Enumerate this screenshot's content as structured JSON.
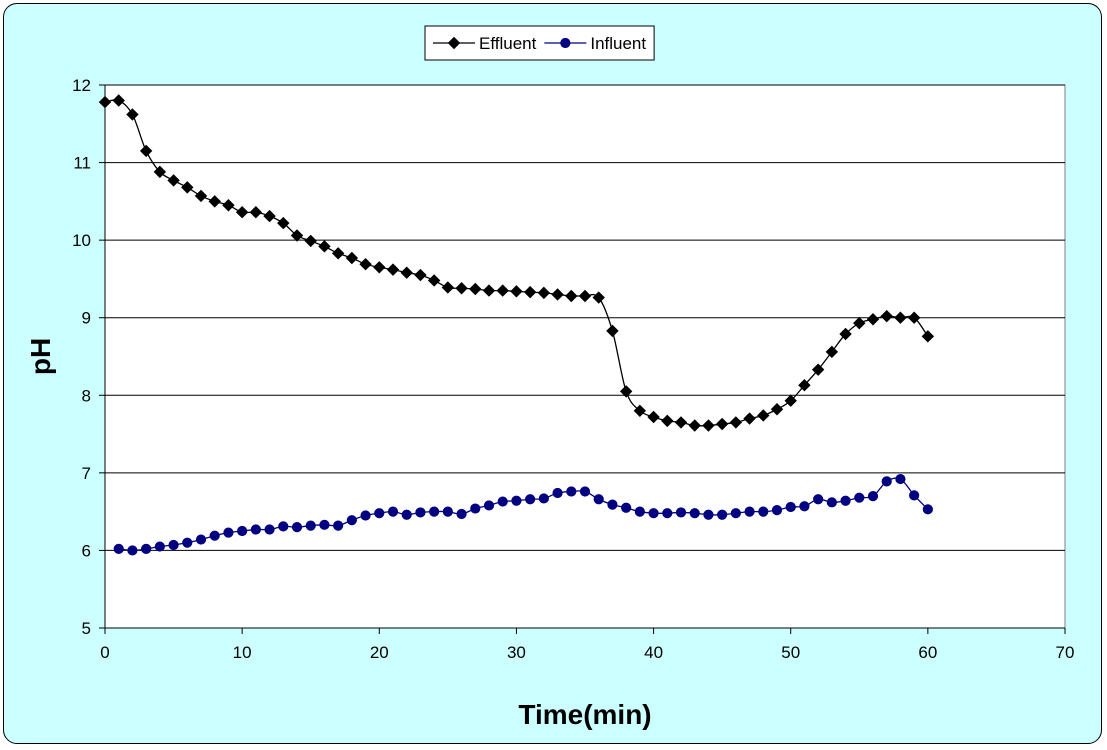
{
  "chart_data": {
    "type": "line",
    "title": "",
    "xlabel": "Time(min)",
    "ylabel": "pH",
    "xlim": [
      0,
      70
    ],
    "ylim": [
      5,
      12
    ],
    "xticks": [
      0,
      10,
      20,
      30,
      40,
      50,
      60,
      70
    ],
    "yticks": [
      5,
      6,
      7,
      8,
      9,
      10,
      11,
      12
    ],
    "grid": "horizontal",
    "legend_position": "top-center",
    "background": "#CCFFFF",
    "plot_background": "#FFFFFF",
    "series": [
      {
        "name": "Effluent",
        "color": "#000000",
        "marker": "diamond",
        "x": [
          0,
          1,
          2,
          3,
          4,
          5,
          6,
          7,
          8,
          9,
          10,
          11,
          12,
          13,
          14,
          15,
          16,
          17,
          18,
          19,
          20,
          21,
          22,
          23,
          24,
          25,
          26,
          27,
          28,
          29,
          30,
          31,
          32,
          33,
          34,
          35,
          36,
          37,
          38,
          39,
          40,
          41,
          42,
          43,
          44,
          45,
          46,
          47,
          48,
          49,
          50,
          51,
          52,
          53,
          54,
          55,
          56,
          57,
          58,
          59,
          60
        ],
        "y": [
          11.78,
          11.8,
          11.62,
          11.15,
          10.88,
          10.77,
          10.68,
          10.57,
          10.5,
          10.45,
          10.36,
          10.36,
          10.31,
          10.22,
          10.06,
          9.99,
          9.92,
          9.83,
          9.77,
          9.69,
          9.65,
          9.62,
          9.58,
          9.55,
          9.48,
          9.39,
          9.38,
          9.37,
          9.35,
          9.35,
          9.34,
          9.33,
          9.32,
          9.3,
          9.28,
          9.28,
          9.26,
          8.83,
          8.05,
          7.8,
          7.72,
          7.67,
          7.65,
          7.61,
          7.61,
          7.63,
          7.65,
          7.7,
          7.74,
          7.82,
          7.93,
          8.13,
          8.33,
          8.56,
          8.79,
          8.93,
          8.98,
          9.02,
          9.0,
          9.0,
          8.76
        ]
      },
      {
        "name": "Influent",
        "color": "#000080",
        "marker": "circle",
        "x": [
          1,
          2,
          3,
          4,
          5,
          6,
          7,
          8,
          9,
          10,
          11,
          12,
          13,
          14,
          15,
          16,
          17,
          18,
          19,
          20,
          21,
          22,
          23,
          24,
          25,
          26,
          27,
          28,
          29,
          30,
          31,
          32,
          33,
          34,
          35,
          36,
          37,
          38,
          39,
          40,
          41,
          42,
          43,
          44,
          45,
          46,
          47,
          48,
          49,
          50,
          51,
          52,
          53,
          54,
          55,
          56,
          57,
          58,
          59,
          60
        ],
        "y": [
          6.02,
          6.0,
          6.02,
          6.05,
          6.07,
          6.1,
          6.14,
          6.19,
          6.23,
          6.25,
          6.27,
          6.27,
          6.31,
          6.3,
          6.32,
          6.33,
          6.32,
          6.39,
          6.45,
          6.48,
          6.5,
          6.46,
          6.49,
          6.5,
          6.5,
          6.47,
          6.54,
          6.58,
          6.63,
          6.64,
          6.66,
          6.67,
          6.74,
          6.76,
          6.76,
          6.66,
          6.59,
          6.55,
          6.5,
          6.48,
          6.48,
          6.49,
          6.48,
          6.46,
          6.46,
          6.48,
          6.5,
          6.5,
          6.52,
          6.56,
          6.57,
          6.66,
          6.62,
          6.64,
          6.68,
          6.7,
          6.89,
          6.92,
          6.71,
          6.53
        ]
      }
    ]
  }
}
